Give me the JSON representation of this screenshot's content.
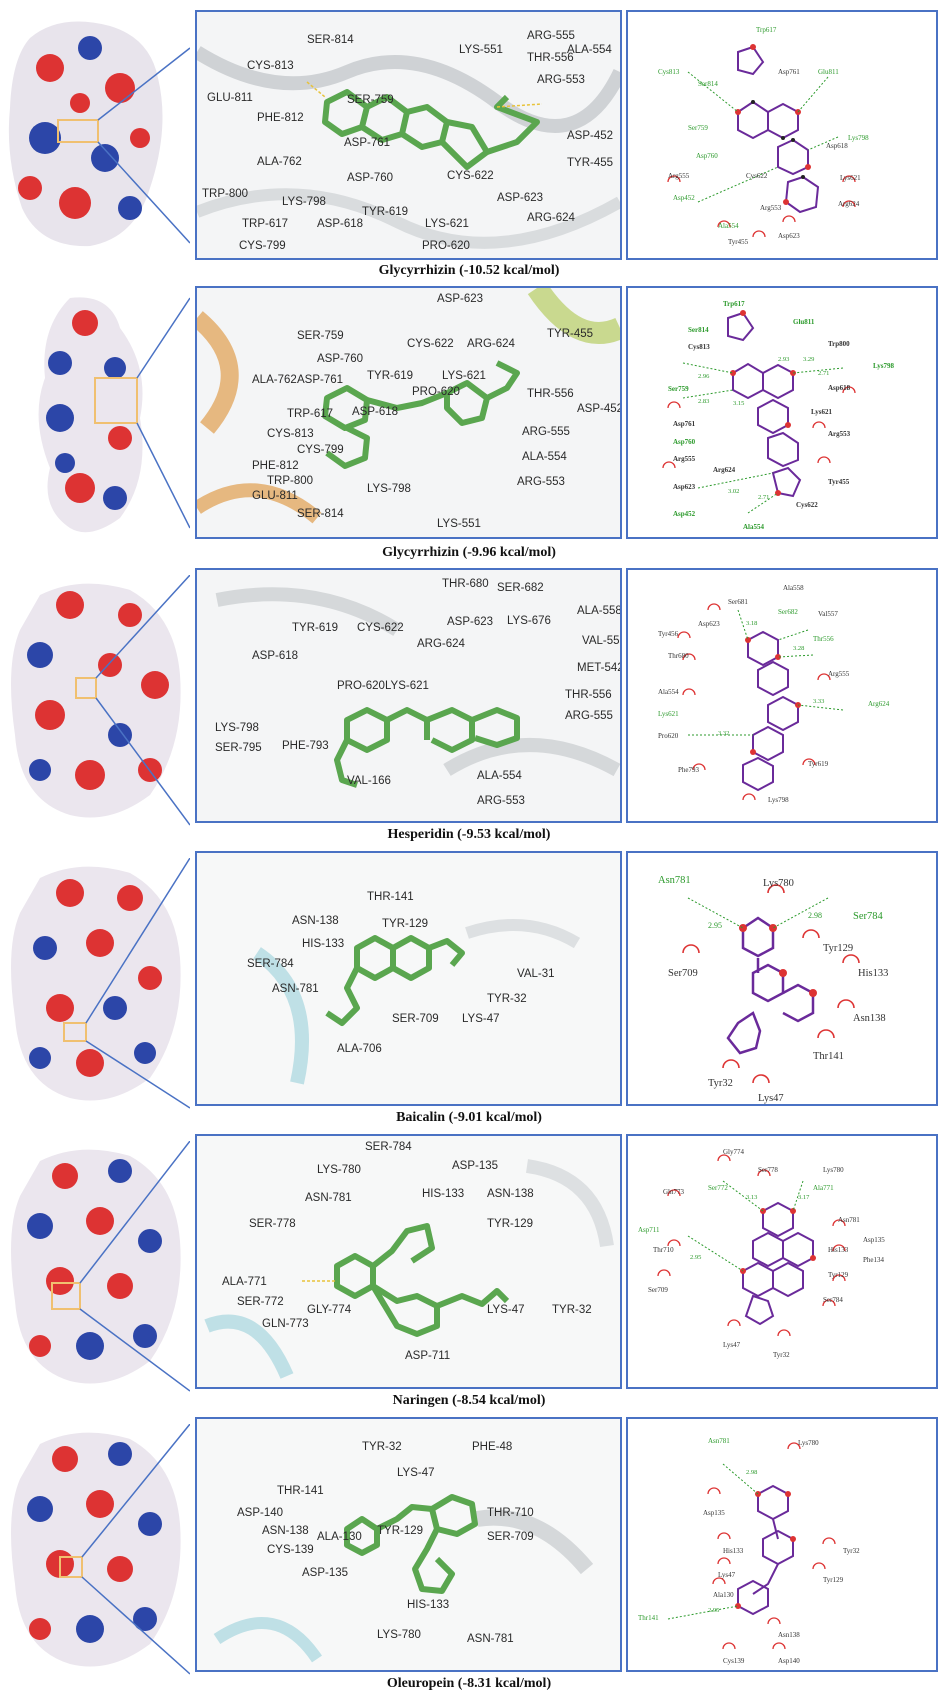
{
  "colors": {
    "frame": "#4a72c4",
    "ligand": "#5aa64f",
    "hbond": "#e8c33a",
    "inset": "#f0c070"
  },
  "panels": [
    {
      "caption": "Glycyrrhizin (-10.52 kcal/mol)",
      "residues": [
        "SER-814",
        "CYS-813",
        "GLU-811",
        "PHE-812",
        "SER-759",
        "LYS-551",
        "ARG-555",
        "THR-556",
        "ALA-554",
        "ARG-553",
        "ASP-761",
        "ASP-452",
        "ALA-762",
        "ASP-760",
        "TRP-800",
        "LYS-798",
        "TYR-619",
        "CYS-622",
        "ASP-623",
        "TYR-455",
        "ARG-624",
        "TRP-617",
        "ASP-618",
        "LYS-621",
        "CYS-799",
        "PRO-620"
      ],
      "ligplot_residues": [
        "Trp617",
        "Cys813",
        "Ser814",
        "Asp761",
        "Glu811",
        "Ser759",
        "Lys798",
        "Asp618",
        "Asp760",
        "Arg555",
        "Cys622",
        "Lys621",
        "Asp452",
        "Arg553",
        "Arg624",
        "Ala554",
        "Tyr455",
        "Asp623"
      ]
    },
    {
      "caption": "Glycyrrhizin (-9.96 kcal/mol)",
      "residues": [
        "ASP-623",
        "SER-759",
        "CYS-622",
        "ARG-624",
        "TYR-455",
        "ASP-760",
        "ALA-762",
        "ASP-761",
        "TYR-619",
        "LYS-621",
        "PRO-620",
        "THR-556",
        "ASP-452",
        "TRP-617",
        "ASP-618",
        "CYS-813",
        "ARG-555",
        "CYS-799",
        "ALA-554",
        "PHE-812",
        "TRP-800",
        "GLU-811",
        "LYS-798",
        "ARG-553",
        "SER-814",
        "LYS-551"
      ],
      "ligplot_residues": [
        "Trp617",
        "Ser814",
        "Glu811",
        "Cys813",
        "Trp800",
        "Lys798",
        "Ser759",
        "Asp618",
        "Asp761",
        "Lys621",
        "Asp760",
        "Arg553",
        "Arg555",
        "Arg624",
        "Asp623",
        "Tyr455",
        "Cys622",
        "Asp452",
        "Ala554"
      ],
      "distances": [
        "2.96",
        "2.93",
        "3.29",
        "2.71",
        "2.83",
        "3.15",
        "3.02",
        "2.71"
      ]
    },
    {
      "caption": "Hesperidin (-9.53 kcal/mol)",
      "residues": [
        "THR-680",
        "SER-682",
        "ALA-558",
        "TYR-619",
        "CYS-622",
        "ASP-623",
        "LYS-676",
        "ARG-624",
        "VAL-557",
        "ASP-618",
        "PRO-620",
        "LYS-621",
        "MET-542",
        "THR-556",
        "ARG-555",
        "LYS-798",
        "SER-795",
        "PHE-793",
        "ALA-554",
        "VAL-166",
        "ARG-553"
      ],
      "ligplot_residues": [
        "Ser681",
        "Ala558",
        "Asp623",
        "Ser682",
        "Val557",
        "Tyr456",
        "Thr680",
        "Thr556",
        "Ala554",
        "Arg555",
        "Lys621",
        "Arg624",
        "Pro620",
        "Phe793",
        "Tyr619",
        "Lys798"
      ],
      "distances": [
        "3.18",
        "3.28",
        "3.33",
        "3.32"
      ]
    },
    {
      "caption": "Baicalin (-9.01 kcal/mol)",
      "residues": [
        "THR-141",
        "ASN-138",
        "TYR-129",
        "HIS-133",
        "SER-784",
        "VAL-31",
        "ASN-781",
        "TYR-32",
        "SER-709",
        "LYS-47",
        "ALA-706"
      ],
      "ligplot_residues": [
        "Asn781",
        "Lys780",
        "Ser784",
        "Tyr129",
        "Ser709",
        "His133",
        "Asn138",
        "Thr141",
        "Tyr32",
        "Lys47"
      ],
      "distances": [
        "2.95",
        "2.98"
      ]
    },
    {
      "caption": "Naringen  (-8.54 kcal/mol)",
      "residues": [
        "SER-784",
        "LYS-780",
        "ASP-135",
        "ASN-781",
        "HIS-133",
        "ASN-138",
        "SER-778",
        "TYR-129",
        "ALA-771",
        "SER-772",
        "GLY-774",
        "LYS-47",
        "TYR-32",
        "GLN-773",
        "ASP-711"
      ],
      "ligplot_residues": [
        "Gly774",
        "Ser772",
        "Ser778",
        "Lys780",
        "Gln773",
        "Ala771",
        "Asn781",
        "Asp711",
        "Asp135",
        "Thr710",
        "His133",
        "Phe134",
        "Ser709",
        "Tyr129",
        "Ser784",
        "Lys47",
        "Tyr32"
      ],
      "distances": [
        "3.13",
        "3.17",
        "2.95"
      ]
    },
    {
      "caption": "Oleuropein (-8.31 kcal/mol)",
      "residues": [
        "TYR-32",
        "PHE-48",
        "LYS-47",
        "THR-141",
        "ASP-140",
        "THR-710",
        "ASN-138",
        "TYR-129",
        "CYS-139",
        "ALA-130",
        "SER-709",
        "ASP-135",
        "HIS-133",
        "LYS-780",
        "ASN-781"
      ],
      "ligplot_residues": [
        "Asn781",
        "Lys780",
        "Asp135",
        "His133",
        "Tyr32",
        "Lys47",
        "Ala130",
        "Tyr129",
        "Thr141",
        "Asn138",
        "Cys139",
        "Asp140"
      ],
      "distances": [
        "2.98",
        "2.95"
      ]
    }
  ]
}
